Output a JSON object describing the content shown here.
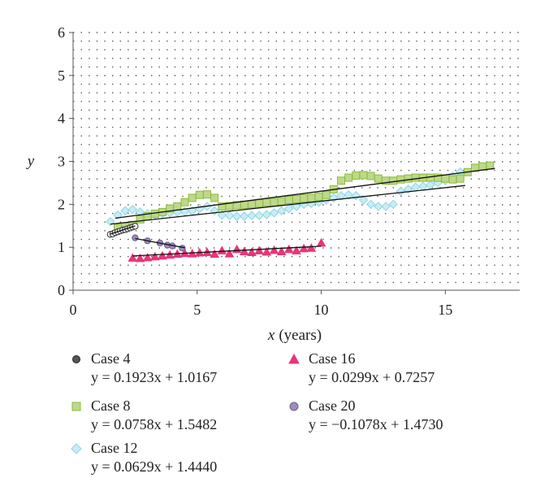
{
  "chart_data": {
    "type": "scatter",
    "xlabel_var": "x",
    "xlabel_unit": "(years)",
    "ylabel": "y",
    "xlim": [
      0,
      18
    ],
    "ylim": [
      0,
      6
    ],
    "xticks": [
      "0",
      "5",
      "10",
      "15"
    ],
    "yticks": [
      "0",
      "1",
      "2",
      "3",
      "4",
      "5",
      "6"
    ],
    "grid": "dotted",
    "legend_position": "bottom",
    "series": [
      {
        "name": "Case 4",
        "equation": "y = 0.1923x + 1.0167",
        "slope": 0.1923,
        "intercept": 1.0167,
        "fit_range": [
          1.5,
          2.5
        ],
        "marker": "circle",
        "color": "#3a3a3a",
        "fill": "#ffffff",
        "x": [
          1.5,
          1.6,
          1.7,
          1.8,
          1.9,
          2.0,
          2.1,
          2.2,
          2.3,
          2.4,
          2.5
        ],
        "y": [
          1.3,
          1.31,
          1.34,
          1.36,
          1.38,
          1.4,
          1.41,
          1.43,
          1.45,
          1.47,
          1.49
        ]
      },
      {
        "name": "Case 8",
        "equation": "y = 0.0758x + 1.5482",
        "slope": 0.0758,
        "intercept": 1.5482,
        "fit_range": [
          1.7,
          17.0
        ],
        "marker": "square",
        "color": "#8dbb3c",
        "fill": "#bdd98a",
        "x": [
          1.8,
          2.1,
          2.4,
          2.7,
          3.0,
          3.3,
          3.6,
          3.9,
          4.2,
          4.5,
          4.8,
          5.1,
          5.4,
          5.7,
          6.0,
          6.3,
          6.6,
          6.9,
          7.2,
          7.5,
          7.8,
          8.1,
          8.4,
          8.7,
          9.0,
          9.3,
          9.6,
          9.9,
          10.2,
          10.5,
          10.8,
          11.1,
          11.4,
          11.7,
          12.0,
          12.3,
          12.6,
          12.9,
          13.2,
          13.5,
          13.8,
          14.1,
          14.4,
          14.7,
          15.0,
          15.3,
          15.6,
          15.9,
          16.2,
          16.5,
          16.8
        ],
        "y": [
          1.45,
          1.48,
          1.52,
          1.65,
          1.72,
          1.78,
          1.82,
          1.9,
          1.95,
          2.05,
          2.15,
          2.22,
          2.23,
          2.15,
          1.95,
          1.96,
          1.98,
          1.99,
          2.0,
          2.02,
          2.04,
          2.05,
          2.07,
          2.1,
          2.12,
          2.14,
          2.15,
          2.18,
          2.22,
          2.35,
          2.55,
          2.62,
          2.67,
          2.68,
          2.66,
          2.6,
          2.55,
          2.55,
          2.58,
          2.6,
          2.62,
          2.62,
          2.62,
          2.62,
          2.6,
          2.58,
          2.6,
          2.75,
          2.85,
          2.88,
          2.9
        ]
      },
      {
        "name": "Case 12",
        "equation": "y = 0.0629x + 1.4440",
        "slope": 0.0629,
        "intercept": 1.444,
        "fit_range": [
          1.5,
          15.8
        ],
        "marker": "diamond",
        "color": "#8ed6e6",
        "fill": "#c9ecf4",
        "x": [
          1.5,
          1.8,
          2.1,
          2.4,
          2.7,
          3.0,
          3.3,
          3.6,
          3.9,
          4.2,
          4.5,
          4.8,
          5.1,
          5.4,
          5.7,
          6.0,
          6.3,
          6.6,
          6.9,
          7.2,
          7.5,
          7.8,
          8.1,
          8.4,
          8.7,
          9.0,
          9.3,
          9.6,
          9.9,
          10.2,
          10.5,
          10.8,
          11.1,
          11.4,
          11.7,
          12.0,
          12.3,
          12.6,
          12.9,
          13.2,
          13.5,
          13.8,
          14.1,
          14.4,
          14.7,
          15.0,
          15.3,
          15.6
        ],
        "y": [
          1.6,
          1.75,
          1.85,
          1.88,
          1.82,
          1.78,
          1.76,
          1.78,
          1.8,
          1.82,
          1.83,
          1.85,
          1.9,
          1.95,
          1.85,
          1.75,
          1.74,
          1.72,
          1.72,
          1.74,
          1.74,
          1.76,
          1.8,
          1.85,
          1.9,
          1.95,
          2.0,
          2.02,
          2.05,
          2.1,
          2.15,
          2.2,
          2.22,
          2.2,
          2.1,
          2.0,
          1.95,
          1.95,
          2.0,
          2.3,
          2.35,
          2.4,
          2.42,
          2.45,
          2.5,
          2.55,
          2.65,
          2.75
        ]
      },
      {
        "name": "Case 16",
        "equation": "y = 0.0299x + 0.7257",
        "slope": 0.0299,
        "intercept": 0.7257,
        "fit_range": [
          2.4,
          10.0
        ],
        "marker": "triangle",
        "color": "#e8357a",
        "fill": "#e8357a",
        "x": [
          2.4,
          2.7,
          3.0,
          3.3,
          3.6,
          3.9,
          4.2,
          4.5,
          4.8,
          5.1,
          5.4,
          5.7,
          6.0,
          6.3,
          6.6,
          6.9,
          7.2,
          7.5,
          7.8,
          8.1,
          8.4,
          8.7,
          9.0,
          9.3,
          9.6,
          10.0
        ],
        "y": [
          0.75,
          0.74,
          0.76,
          0.78,
          0.8,
          0.82,
          0.84,
          0.86,
          0.85,
          0.87,
          0.88,
          0.84,
          0.92,
          0.85,
          0.95,
          0.9,
          0.88,
          0.92,
          0.89,
          0.93,
          0.9,
          0.95,
          0.92,
          0.97,
          0.98,
          1.1
        ]
      },
      {
        "name": "Case 20",
        "equation": "y = −0.1078x + 1.4730",
        "slope": -0.1078,
        "intercept": 1.473,
        "fit_range": [
          2.5,
          4.5
        ],
        "marker": "circle",
        "color": "#6f5f8c",
        "fill": "#a08cbb",
        "x": [
          2.5,
          3.0,
          3.5,
          3.8,
          4.0,
          4.4
        ],
        "y": [
          1.22,
          1.15,
          1.1,
          1.05,
          1.03,
          0.98
        ]
      }
    ]
  }
}
